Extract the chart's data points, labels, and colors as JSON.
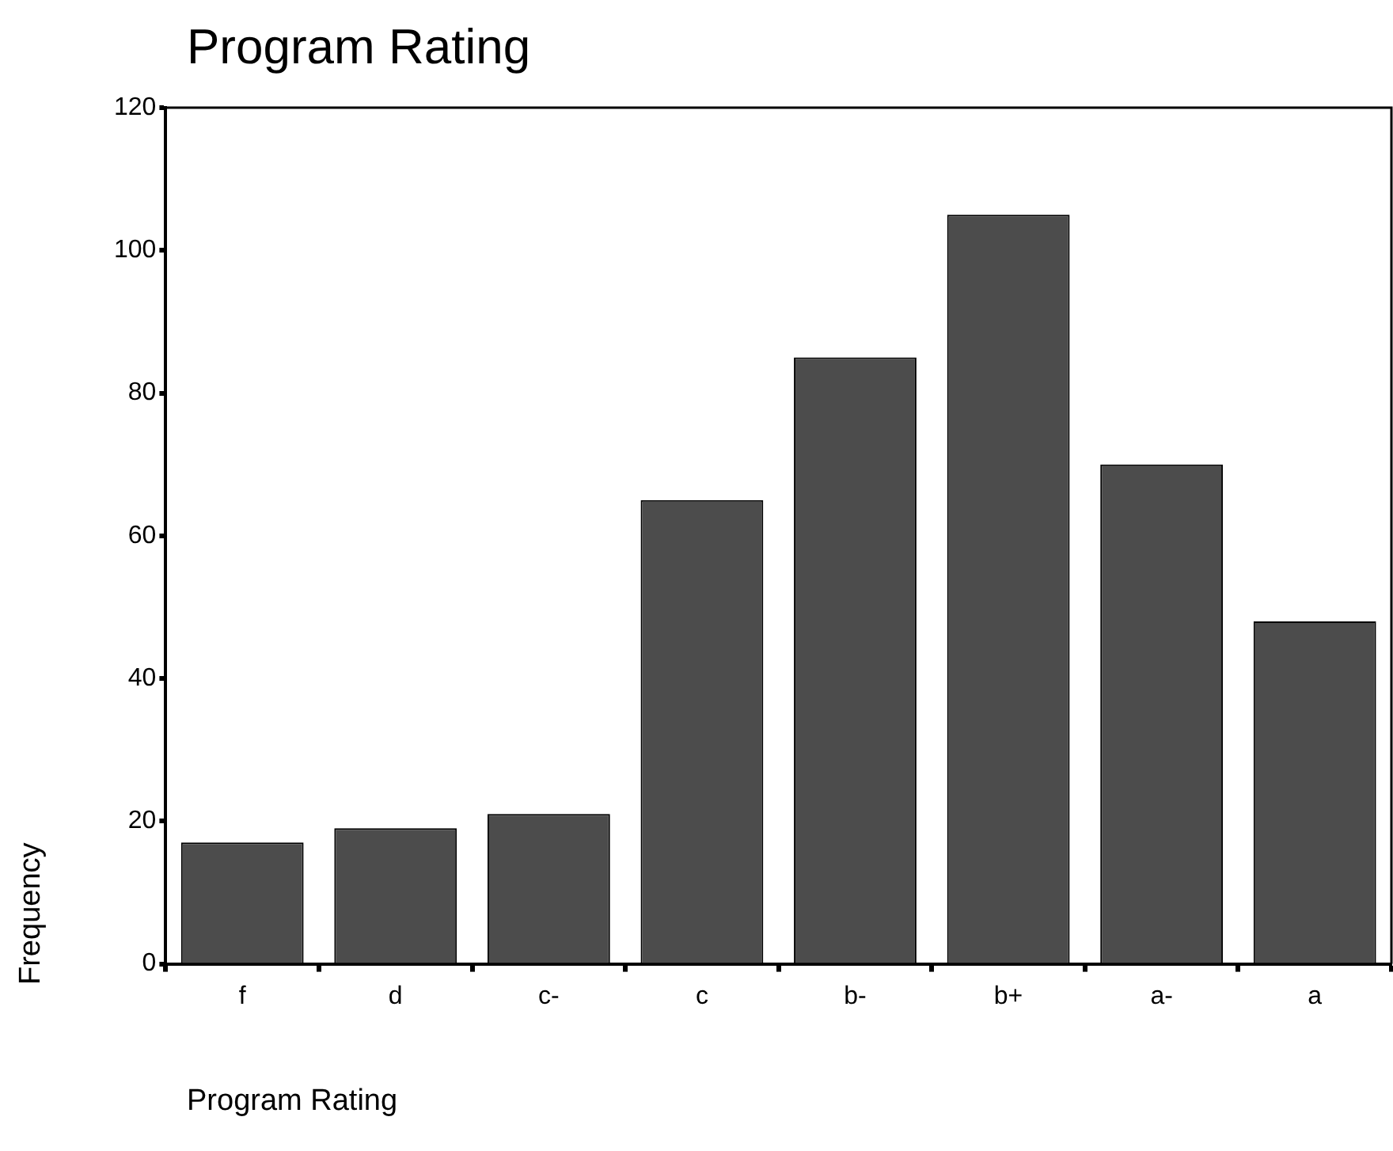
{
  "chart_data": {
    "type": "bar",
    "title": "Program Rating",
    "xlabel": "Program Rating",
    "ylabel": "Frequency",
    "categories": [
      "f",
      "d",
      "c-",
      "c",
      "b-",
      "b+",
      "a-",
      "a"
    ],
    "values": [
      17,
      19,
      21,
      65,
      85,
      105,
      70,
      48
    ],
    "color": "#4c4c4c",
    "ylim": [
      0,
      120
    ],
    "yticks": [
      0,
      20,
      40,
      60,
      80,
      100,
      120
    ],
    "grid": false,
    "legend": false
  }
}
